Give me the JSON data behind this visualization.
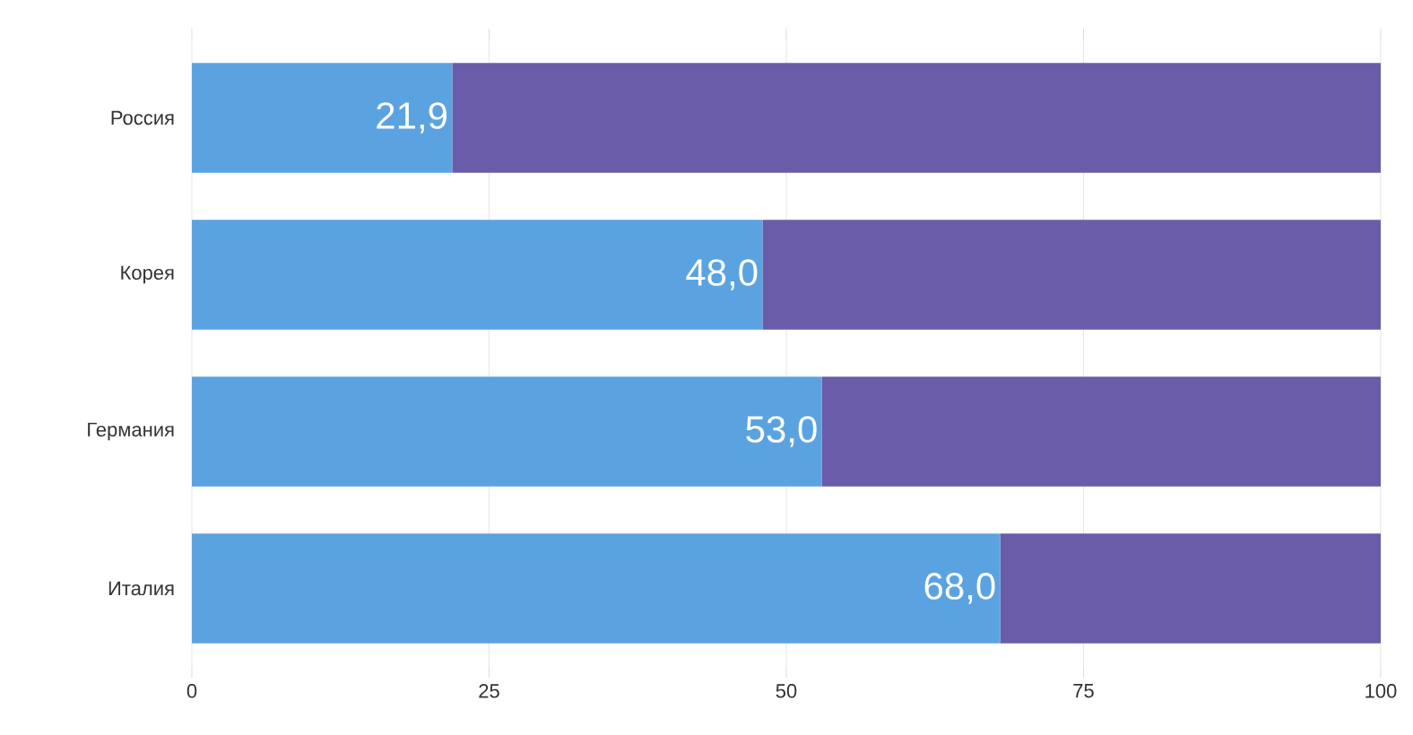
{
  "chart_data": {
    "type": "bar",
    "orientation": "horizontal",
    "stacked": true,
    "categories": [
      "Россия",
      "Корея",
      "Германия",
      "Италия"
    ],
    "series": [
      {
        "color": "#5ba3e0",
        "values": [
          21.9,
          48.0,
          53.0,
          68.0
        ],
        "value_labels": [
          "21,9",
          "48,0",
          "53,0",
          "68,0"
        ]
      },
      {
        "color": "#6a5ca8",
        "values": [
          78.1,
          52.0,
          47.0,
          32.0
        ]
      }
    ],
    "xlim": [
      0,
      100
    ],
    "xticks": [
      0,
      25,
      50,
      75,
      100
    ],
    "grid": "x"
  }
}
